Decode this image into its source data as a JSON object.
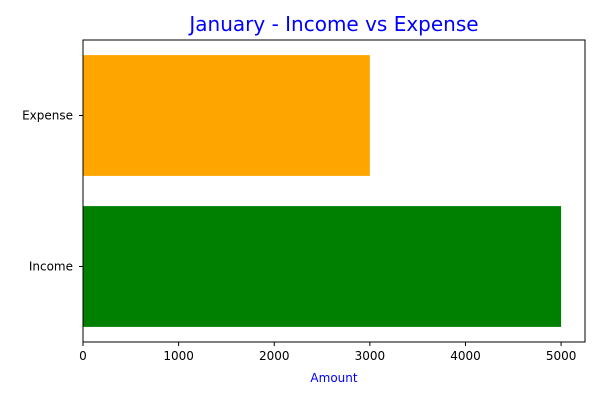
{
  "chart_data": {
    "type": "bar",
    "orientation": "horizontal",
    "title": "January - Income vs Expense",
    "xlabel": "Amount",
    "ylabel": "",
    "categories": [
      "Income",
      "Expense"
    ],
    "values": [
      5000,
      3000
    ],
    "bar_colors": [
      "#008000",
      "#FFA500"
    ],
    "xlim": [
      0,
      5250
    ],
    "xticks": [
      0,
      1000,
      2000,
      3000,
      4000,
      5000
    ],
    "grid": false,
    "legend": "none",
    "title_color": "#0000FF",
    "xlabel_color": "#0000FF"
  }
}
